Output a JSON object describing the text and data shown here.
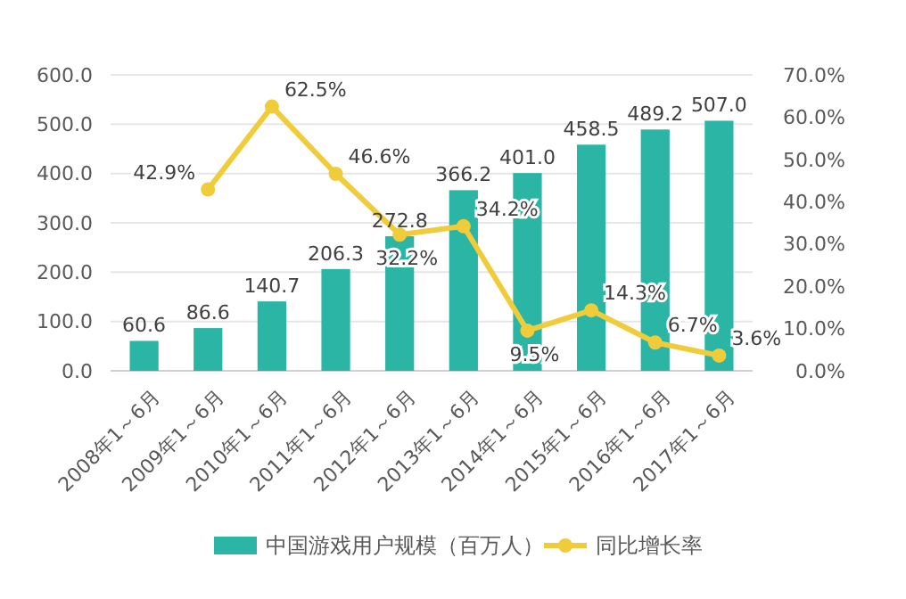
{
  "chart_data": {
    "type": "bar",
    "categories": [
      "2008年1～6月",
      "2009年1～6月",
      "2010年1～6月",
      "2011年1～6月",
      "2012年1～6月",
      "2013年1～6月",
      "2014年1～6月",
      "2015年1～6月",
      "2016年1～6月",
      "2017年1～6月"
    ],
    "series": [
      {
        "name": "中国游戏用户规模（百万人）",
        "color": "#2bb5a5",
        "values": [
          60.6,
          86.6,
          140.7,
          206.3,
          272.8,
          366.2,
          401.0,
          458.5,
          489.2,
          507.0
        ],
        "value_labels": [
          "60.6",
          "86.6",
          "140.7",
          "206.3",
          "272.8",
          "366.2",
          "401.0",
          "458.5",
          "489.2",
          "507.0"
        ]
      },
      {
        "name": "同比增长率",
        "type": "line",
        "axis": "y2",
        "color": "#f0cc3a",
        "marker": "circle",
        "values": [
          null,
          42.9,
          62.5,
          46.6,
          32.2,
          34.2,
          9.5,
          14.3,
          6.7,
          3.6
        ],
        "value_labels": [
          null,
          "42.9%",
          "62.5%",
          "46.6%",
          "32.2%",
          "34.2%",
          "9.5%",
          "14.3%",
          "6.7%",
          "3.6%"
        ]
      }
    ],
    "ylim": [
      0,
      600
    ],
    "yticks": [
      {
        "value": 0,
        "label": "0.0"
      },
      {
        "value": 100,
        "label": "100.0"
      },
      {
        "value": 200,
        "label": "200.0"
      },
      {
        "value": 300,
        "label": "300.0"
      },
      {
        "value": 400,
        "label": "400.0"
      },
      {
        "value": 500,
        "label": "500.0"
      },
      {
        "value": 600,
        "label": "600.0"
      }
    ],
    "y2lim": [
      0,
      70
    ],
    "y2ticks": [
      {
        "value": 0,
        "label": "0.0%"
      },
      {
        "value": 10,
        "label": "10.0%"
      },
      {
        "value": 20,
        "label": "20.0%"
      },
      {
        "value": 30,
        "label": "30.0%"
      },
      {
        "value": 40,
        "label": "40.0%"
      },
      {
        "value": 50,
        "label": "50.0%"
      },
      {
        "value": 60,
        "label": "60.0%"
      },
      {
        "value": 70,
        "label": "70.0%"
      }
    ],
    "grid": "y",
    "legend": "bottom"
  }
}
